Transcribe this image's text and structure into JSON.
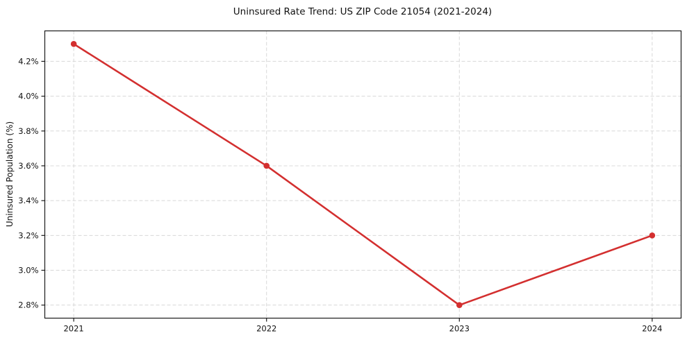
{
  "chart_data": {
    "type": "line",
    "title": "Uninsured Rate Trend: US ZIP Code 21054 (2021-2024)",
    "xlabel": "",
    "ylabel": "Uninsured Population (%)",
    "x": [
      2021,
      2022,
      2023,
      2024
    ],
    "values": [
      4.3,
      3.6,
      2.8,
      3.2
    ],
    "xticks": [
      2021,
      2022,
      2023,
      2024
    ],
    "xtick_labels": [
      "2021",
      "2022",
      "2023",
      "2024"
    ],
    "yticks": [
      2.8,
      3.0,
      3.2,
      3.4,
      3.6,
      3.8,
      4.0,
      4.2
    ],
    "ytick_labels": [
      "2.8%",
      "3.0%",
      "3.2%",
      "3.4%",
      "3.6%",
      "3.8%",
      "4.0%",
      "4.2%"
    ],
    "xlim": [
      2020.85,
      2024.15
    ],
    "ylim": [
      2.725,
      4.375
    ],
    "grid": true,
    "grid_style": "dashed",
    "grid_color": "#d8d8d8",
    "line_color": "#d32f2f",
    "marker": "circle",
    "text_color": "#111111",
    "legend": "none",
    "background_color": "#ffffff"
  }
}
